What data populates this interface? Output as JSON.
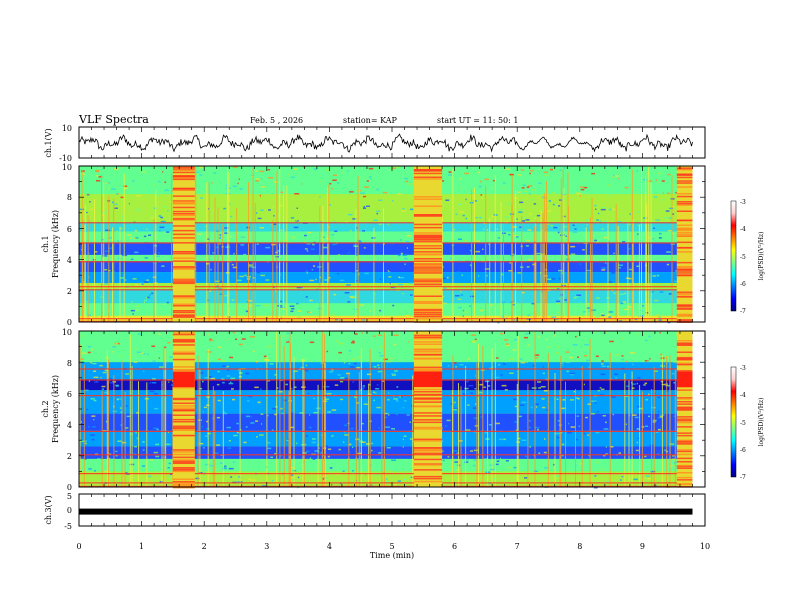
{
  "header": {
    "title": "VLF Spectra",
    "date": "Feb. 5 , 2026",
    "station": "station= KAP",
    "start_ut": "start UT = 11: 50: 1"
  },
  "chart_data": [
    {
      "type": "line",
      "panel": "ch1-waveform",
      "ylabel": "ch.1(V)",
      "ylim": [
        -10,
        10
      ],
      "ytick_labels": [
        "10",
        "-10"
      ],
      "x_range_min": [
        0,
        9.8
      ]
    },
    {
      "type": "heatmap",
      "panel": "ch1-spectrogram",
      "ylabel": "ch.1\nFrequency (kHz)",
      "ylabel_lines": [
        "ch.1",
        "Frequency (kHz)"
      ],
      "ylim_khz": [
        0,
        10
      ],
      "ytick_labels": [
        "0",
        "2",
        "4",
        "6",
        "8",
        "10"
      ],
      "x_range_min": [
        0,
        9.8
      ],
      "gap_intervals_min": [
        [
          1.5,
          1.85
        ],
        [
          5.35,
          5.8
        ],
        [
          9.55,
          9.8
        ]
      ],
      "colorbar": {
        "label": "log(PSD)(V²/Hz)",
        "range": [
          -7,
          -3
        ],
        "tick_labels": [
          "-3",
          "-4",
          "-5",
          "-6",
          "-7"
        ],
        "colors": [
          "#000080",
          "#0000ff",
          "#0080ff",
          "#00ffff",
          "#80ff80",
          "#ffff00",
          "#ff8000",
          "#ff0000",
          "#ffd0d0",
          "#ffffff"
        ]
      }
    },
    {
      "type": "heatmap",
      "panel": "ch2-spectrogram",
      "ylabel_lines": [
        "ch.2",
        "Frequency (kHz)"
      ],
      "ylim_khz": [
        0,
        10
      ],
      "ytick_labels": [
        "0",
        "2",
        "4",
        "6",
        "8",
        "10"
      ],
      "x_range_min": [
        0,
        9.8
      ],
      "gap_intervals_min": [
        [
          1.5,
          1.85
        ],
        [
          5.35,
          5.8
        ],
        [
          9.55,
          9.8
        ]
      ],
      "colorbar": {
        "label": "log(PSD)(V²/Hz)",
        "range": [
          -7,
          -3
        ],
        "tick_labels": [
          "-3",
          "-4",
          "-5",
          "-6",
          "-7"
        ]
      }
    },
    {
      "type": "line",
      "panel": "ch3-signal",
      "ylabel": "ch.3(V)",
      "ylim": [
        -5,
        5
      ],
      "ytick_labels": [
        "5",
        "0",
        "-5"
      ],
      "value_v": -0.5,
      "x_range_min": [
        0,
        9.8
      ]
    }
  ],
  "xaxis": {
    "label": "Time (min)",
    "range": [
      0,
      10
    ],
    "tick_labels": [
      "0",
      "1",
      "2",
      "3",
      "4",
      "5",
      "6",
      "7",
      "8",
      "9",
      "10"
    ]
  }
}
